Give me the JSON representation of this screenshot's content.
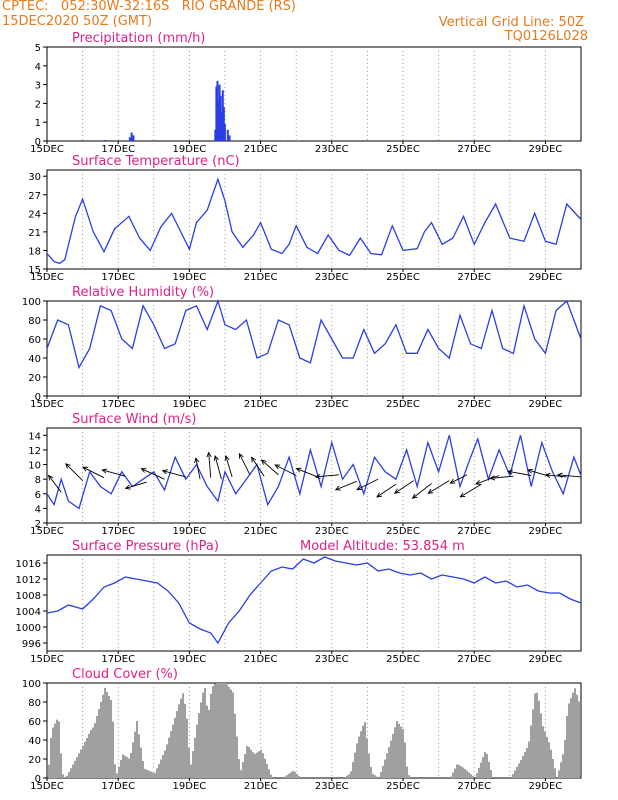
{
  "header": {
    "line1_left": "CPTEC:   052:30W-32:16S   RIO GRANDE (RS)",
    "line2_left": "15DEC2020 50Z (GMT)",
    "line1_right": "Vertical Grid Line: 50Z",
    "line2_right": "TQ0126L028"
  },
  "colors": {
    "header": "#e87a1e",
    "title": "#e0208a",
    "series": "#2a3fe6",
    "cloud": "#a0a0a0",
    "arrows": "#000000"
  },
  "x_labels": [
    "15DEC",
    "17DEC",
    "19DEC",
    "21DEC",
    "23DEC",
    "25DEC",
    "27DEC",
    "29DEC"
  ],
  "chart_data": [
    {
      "type": "bar",
      "title": "Precipitation (mm/h)",
      "ylim": [
        0,
        5
      ],
      "yticks": [
        0,
        1,
        2,
        3,
        4,
        5
      ],
      "x_range_days": [
        15,
        30
      ],
      "bars": [
        [
          16.6,
          0.05
        ],
        [
          17.3,
          0.2
        ],
        [
          17.35,
          0.45
        ],
        [
          17.4,
          0.3
        ],
        [
          19.7,
          0.6
        ],
        [
          19.73,
          2.9
        ],
        [
          19.76,
          3.2
        ],
        [
          19.79,
          2.1
        ],
        [
          19.82,
          3.0
        ],
        [
          19.85,
          2.4
        ],
        [
          19.88,
          1.5
        ],
        [
          19.91,
          2.7
        ],
        [
          19.94,
          1.8
        ],
        [
          19.97,
          0.9
        ],
        [
          20.05,
          0.6
        ],
        [
          20.1,
          0.3
        ],
        [
          21.6,
          0.03
        ],
        [
          22.0,
          0.03
        ],
        [
          25.3,
          0.04
        ],
        [
          26.6,
          0.04
        ],
        [
          28.9,
          0.04
        ],
        [
          29.3,
          0.04
        ]
      ]
    },
    {
      "type": "line",
      "title": "Surface Temperature (nC)",
      "ylim": [
        15,
        31
      ],
      "yticks": [
        15,
        18,
        21,
        24,
        27,
        30
      ],
      "series": [
        {
          "x": [
            15.0,
            15.2,
            15.35,
            15.5,
            15.8,
            16.0,
            16.3,
            16.6,
            16.9,
            17.3,
            17.6,
            17.9,
            18.2,
            18.5,
            18.8,
            19.0,
            19.2,
            19.5,
            19.8,
            20.0,
            20.2,
            20.5,
            20.8,
            21.0,
            21.3,
            21.6,
            21.8,
            22.0,
            22.3,
            22.6,
            22.9,
            23.2,
            23.5,
            23.8,
            24.1,
            24.4,
            24.7,
            25.0,
            25.4,
            25.6,
            25.8,
            26.1,
            26.4,
            26.7,
            27.0,
            27.3,
            27.6,
            28.0,
            28.4,
            28.7,
            29.0,
            29.3,
            29.6,
            30.0
          ],
          "y": [
            17.5,
            16.2,
            15.9,
            16.5,
            23.5,
            26.3,
            21.0,
            17.8,
            21.5,
            23.5,
            20.0,
            18.0,
            21.8,
            24.0,
            20.5,
            18.2,
            22.5,
            24.5,
            29.5,
            26.0,
            21.0,
            18.5,
            20.5,
            22.5,
            18.2,
            17.5,
            19.0,
            22.0,
            18.5,
            17.5,
            20.5,
            18.0,
            17.2,
            20.0,
            17.5,
            17.3,
            22.0,
            18.0,
            18.3,
            21.0,
            22.5,
            19.0,
            20.0,
            23.5,
            19.0,
            22.5,
            25.5,
            20.0,
            19.5,
            24.0,
            19.5,
            19.0,
            25.5,
            23.0
          ]
        }
      ]
    },
    {
      "type": "line",
      "title": "Relative Humidity (%)",
      "ylim": [
        0,
        100
      ],
      "yticks": [
        0,
        20,
        40,
        60,
        80,
        100
      ],
      "series": [
        {
          "x": [
            15.0,
            15.3,
            15.6,
            15.9,
            16.2,
            16.5,
            16.8,
            17.1,
            17.4,
            17.7,
            18.0,
            18.3,
            18.6,
            18.9,
            19.2,
            19.5,
            19.8,
            20.0,
            20.3,
            20.6,
            20.9,
            21.2,
            21.5,
            21.8,
            22.1,
            22.4,
            22.7,
            23.0,
            23.3,
            23.6,
            23.9,
            24.2,
            24.5,
            24.8,
            25.1,
            25.4,
            25.7,
            26.0,
            26.3,
            26.6,
            26.9,
            27.2,
            27.5,
            27.8,
            28.1,
            28.4,
            28.7,
            29.0,
            29.3,
            29.6,
            30.0
          ],
          "y": [
            50,
            80,
            75,
            30,
            50,
            95,
            90,
            60,
            50,
            95,
            75,
            50,
            55,
            90,
            95,
            70,
            100,
            75,
            70,
            80,
            40,
            45,
            80,
            75,
            40,
            35,
            80,
            60,
            40,
            40,
            70,
            45,
            55,
            75,
            45,
            45,
            70,
            50,
            40,
            85,
            55,
            50,
            90,
            50,
            45,
            95,
            60,
            45,
            90,
            100,
            60
          ]
        }
      ]
    },
    {
      "type": "line",
      "title": "Surface Wind (m/s)",
      "ylim": [
        2,
        15
      ],
      "yticks": [
        2,
        4,
        6,
        8,
        10,
        12,
        14
      ],
      "series": [
        {
          "x": [
            15.0,
            15.2,
            15.4,
            15.6,
            15.9,
            16.2,
            16.5,
            16.8,
            17.1,
            17.4,
            17.7,
            18.0,
            18.3,
            18.6,
            18.9,
            19.2,
            19.5,
            19.8,
            20.0,
            20.3,
            20.6,
            20.9,
            21.2,
            21.5,
            21.8,
            22.1,
            22.4,
            22.7,
            23.0,
            23.3,
            23.6,
            23.9,
            24.2,
            24.5,
            24.8,
            25.1,
            25.4,
            25.7,
            26.0,
            26.3,
            26.6,
            26.9,
            27.1,
            27.4,
            27.7,
            28.0,
            28.3,
            28.6,
            28.9,
            29.2,
            29.5,
            29.8,
            30.0
          ],
          "y": [
            6,
            4.5,
            8,
            5,
            4,
            9,
            7,
            6,
            9,
            7,
            8,
            9,
            6.5,
            11,
            8,
            10,
            7,
            5,
            9,
            6,
            8,
            10,
            4.5,
            7,
            11,
            6,
            12,
            7,
            13,
            8,
            10,
            6,
            11,
            9,
            8,
            12,
            7,
            13,
            9,
            14,
            7,
            11,
            13.5,
            8,
            12,
            8.5,
            14,
            7,
            13,
            9,
            6,
            11,
            8.5
          ]
        }
      ],
      "arrows": [
        [
          15.4,
          6.2,
          -0.3,
          0.4
        ],
        [
          16.0,
          7.8,
          -0.4,
          0.4
        ],
        [
          16.6,
          8.2,
          -0.5,
          0.25
        ],
        [
          17.2,
          8.4,
          -0.55,
          0.15
        ],
        [
          17.8,
          7.6,
          -0.5,
          -0.15
        ],
        [
          18.3,
          8.0,
          -0.55,
          0.25
        ],
        [
          18.9,
          8.3,
          -0.55,
          0.15
        ],
        [
          19.3,
          8.0,
          -0.1,
          0.5
        ],
        [
          19.6,
          8.2,
          -0.05,
          0.6
        ],
        [
          19.9,
          8.0,
          -0.15,
          0.55
        ],
        [
          20.2,
          8.3,
          -0.15,
          0.5
        ],
        [
          20.7,
          8.6,
          -0.25,
          0.5
        ],
        [
          21.1,
          8.4,
          -0.3,
          0.45
        ],
        [
          21.5,
          8.6,
          -0.4,
          0.35
        ],
        [
          22.0,
          8.5,
          -0.5,
          0.25
        ],
        [
          22.6,
          8.3,
          -0.5,
          0.2
        ],
        [
          23.2,
          8.6,
          -0.55,
          -0.05
        ],
        [
          23.7,
          7.7,
          -0.5,
          -0.2
        ],
        [
          24.3,
          8.0,
          -0.5,
          -0.25
        ],
        [
          24.8,
          7.3,
          -0.45,
          -0.3
        ],
        [
          25.3,
          7.8,
          -0.45,
          -0.3
        ],
        [
          25.8,
          7.4,
          -0.45,
          -0.35
        ],
        [
          26.3,
          7.8,
          -0.5,
          -0.3
        ],
        [
          26.8,
          8.6,
          -0.4,
          -0.2
        ],
        [
          27.2,
          7.3,
          -0.5,
          -0.3
        ],
        [
          27.7,
          8.5,
          -0.55,
          -0.2
        ],
        [
          28.1,
          8.4,
          -0.55,
          -0.05
        ],
        [
          28.6,
          8.5,
          -0.55,
          0.1
        ],
        [
          29.1,
          8.4,
          -0.5,
          0.15
        ],
        [
          29.6,
          8.3,
          -0.5,
          0.05
        ],
        [
          30.0,
          8.3,
          -0.55,
          0.05
        ]
      ]
    },
    {
      "type": "line",
      "title": "Surface Pressure (hPa)",
      "subtitle": "Model Altitude: 53.854  m",
      "ylim": [
        994,
        1018
      ],
      "yticks": [
        996,
        1000,
        1004,
        1008,
        1012,
        1016
      ],
      "series": [
        {
          "x": [
            15.0,
            15.3,
            15.6,
            16.0,
            16.3,
            16.6,
            16.9,
            17.2,
            17.5,
            17.8,
            18.1,
            18.4,
            18.7,
            19.0,
            19.3,
            19.6,
            19.8,
            20.1,
            20.4,
            20.7,
            21.0,
            21.3,
            21.6,
            21.9,
            22.2,
            22.5,
            22.8,
            23.1,
            23.4,
            23.7,
            24.0,
            24.3,
            24.6,
            24.9,
            25.2,
            25.5,
            25.8,
            26.1,
            26.4,
            26.7,
            27.0,
            27.3,
            27.6,
            27.9,
            28.2,
            28.5,
            28.8,
            29.1,
            29.4,
            29.7,
            30.0
          ],
          "y": [
            1003.5,
            1004,
            1005.5,
            1004.5,
            1007,
            1010,
            1011,
            1012.5,
            1012,
            1011.5,
            1011,
            1009,
            1006,
            1001,
            999.5,
            998.5,
            996,
            1001,
            1004,
            1008,
            1011,
            1014,
            1015,
            1014.5,
            1017,
            1016,
            1017.5,
            1016.5,
            1016,
            1015.5,
            1016,
            1014,
            1014.5,
            1013.5,
            1013,
            1013.5,
            1012,
            1013,
            1012.5,
            1012,
            1011,
            1012.5,
            1011,
            1011.5,
            1010,
            1010.5,
            1009,
            1008.5,
            1008.5,
            1007,
            1006
          ]
        }
      ]
    },
    {
      "type": "bar",
      "title": "Cloud Cover (%)",
      "ylim": [
        0,
        100
      ],
      "yticks": [
        0,
        20,
        40,
        60,
        80,
        100
      ],
      "envelope": [
        [
          15.0,
          0
        ],
        [
          15.1,
          50
        ],
        [
          15.3,
          65
        ],
        [
          15.4,
          5
        ],
        [
          15.5,
          0
        ],
        [
          16.0,
          35
        ],
        [
          16.2,
          50
        ],
        [
          16.3,
          55
        ],
        [
          16.6,
          95
        ],
        [
          16.8,
          80
        ],
        [
          16.9,
          0
        ],
        [
          17.1,
          25
        ],
        [
          17.3,
          20
        ],
        [
          17.5,
          60
        ],
        [
          17.7,
          10
        ],
        [
          18.0,
          5
        ],
        [
          18.3,
          30
        ],
        [
          18.5,
          55
        ],
        [
          18.7,
          80
        ],
        [
          18.8,
          90
        ],
        [
          18.9,
          65
        ],
        [
          19.0,
          10
        ],
        [
          19.2,
          60
        ],
        [
          19.3,
          80
        ],
        [
          19.4,
          98
        ],
        [
          19.5,
          65
        ],
        [
          19.6,
          95
        ],
        [
          19.7,
          100
        ],
        [
          19.8,
          100
        ],
        [
          20.0,
          100
        ],
        [
          20.2,
          90
        ],
        [
          20.4,
          5
        ],
        [
          20.6,
          35
        ],
        [
          20.8,
          25
        ],
        [
          21.0,
          30
        ],
        [
          21.2,
          10
        ],
        [
          21.3,
          0
        ],
        [
          21.6,
          0
        ],
        [
          21.9,
          8
        ],
        [
          22.1,
          0
        ],
        [
          23.0,
          0
        ],
        [
          23.3,
          0
        ],
        [
          23.5,
          5
        ],
        [
          23.7,
          40
        ],
        [
          23.9,
          60
        ],
        [
          24.0,
          30
        ],
        [
          24.1,
          5
        ],
        [
          24.3,
          0
        ],
        [
          24.6,
          35
        ],
        [
          24.8,
          60
        ],
        [
          25.0,
          50
        ],
        [
          25.1,
          5
        ],
        [
          25.2,
          0
        ],
        [
          26.3,
          0
        ],
        [
          26.5,
          15
        ],
        [
          26.7,
          10
        ],
        [
          27.0,
          0
        ],
        [
          27.3,
          30
        ],
        [
          27.5,
          0
        ],
        [
          27.7,
          0
        ],
        [
          28.0,
          0
        ],
        [
          28.3,
          20
        ],
        [
          28.5,
          35
        ],
        [
          28.7,
          95
        ],
        [
          28.8,
          80
        ],
        [
          28.9,
          55
        ],
        [
          29.1,
          35
        ],
        [
          29.3,
          0
        ],
        [
          29.5,
          30
        ],
        [
          29.6,
          75
        ],
        [
          29.8,
          95
        ],
        [
          30.0,
          70
        ]
      ]
    }
  ]
}
